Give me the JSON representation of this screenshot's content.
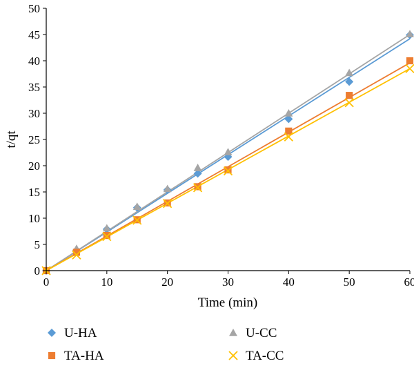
{
  "chart_data": {
    "type": "scatter",
    "title": "",
    "xlabel": "Time (min)",
    "ylabel": "t/qt",
    "xlim": [
      0,
      60
    ],
    "ylim": [
      0,
      50
    ],
    "xticks": [
      0,
      10,
      20,
      30,
      40,
      50,
      60
    ],
    "yticks": [
      0,
      5,
      10,
      15,
      20,
      25,
      30,
      35,
      40,
      45,
      50
    ],
    "grid": false,
    "trendlines": true,
    "legend_position": "bottom",
    "series": [
      {
        "name": "U-HA",
        "marker": "diamond",
        "color": "#5B9BD5",
        "x": [
          0,
          5,
          10,
          15,
          20,
          25,
          30,
          40,
          50,
          60
        ],
        "y": [
          0,
          3.9,
          7.9,
          12.0,
          15.4,
          18.5,
          21.7,
          28.9,
          36.0,
          44.9
        ],
        "fit": [
          [
            0,
            0
          ],
          [
            60,
            44.2
          ]
        ]
      },
      {
        "name": "U-CC",
        "marker": "triangle",
        "color": "#A5A5A5",
        "x": [
          0,
          5,
          10,
          15,
          20,
          25,
          30,
          40,
          50,
          60
        ],
        "y": [
          0,
          4.2,
          8.1,
          12.2,
          15.6,
          19.6,
          22.6,
          30.0,
          37.7,
          45.1
        ],
        "fit": [
          [
            0,
            0
          ],
          [
            60,
            45.0
          ]
        ]
      },
      {
        "name": "TA-HA",
        "marker": "square",
        "color": "#ED7D31",
        "x": [
          0,
          5,
          10,
          15,
          20,
          25,
          30,
          40,
          50,
          60
        ],
        "y": [
          0,
          3.5,
          6.7,
          9.7,
          12.9,
          16.0,
          19.2,
          26.6,
          33.4,
          40.0
        ],
        "fit": [
          [
            0,
            0
          ],
          [
            60,
            39.6
          ]
        ]
      },
      {
        "name": "TA-CC",
        "marker": "x",
        "color": "#FFC000",
        "x": [
          0,
          5,
          10,
          15,
          20,
          25,
          30,
          40,
          50,
          60
        ],
        "y": [
          0,
          3.0,
          6.5,
          9.6,
          12.8,
          15.8,
          19.0,
          25.5,
          32.0,
          38.5
        ],
        "fit": [
          [
            0,
            0
          ],
          [
            60,
            38.5
          ]
        ]
      }
    ]
  }
}
